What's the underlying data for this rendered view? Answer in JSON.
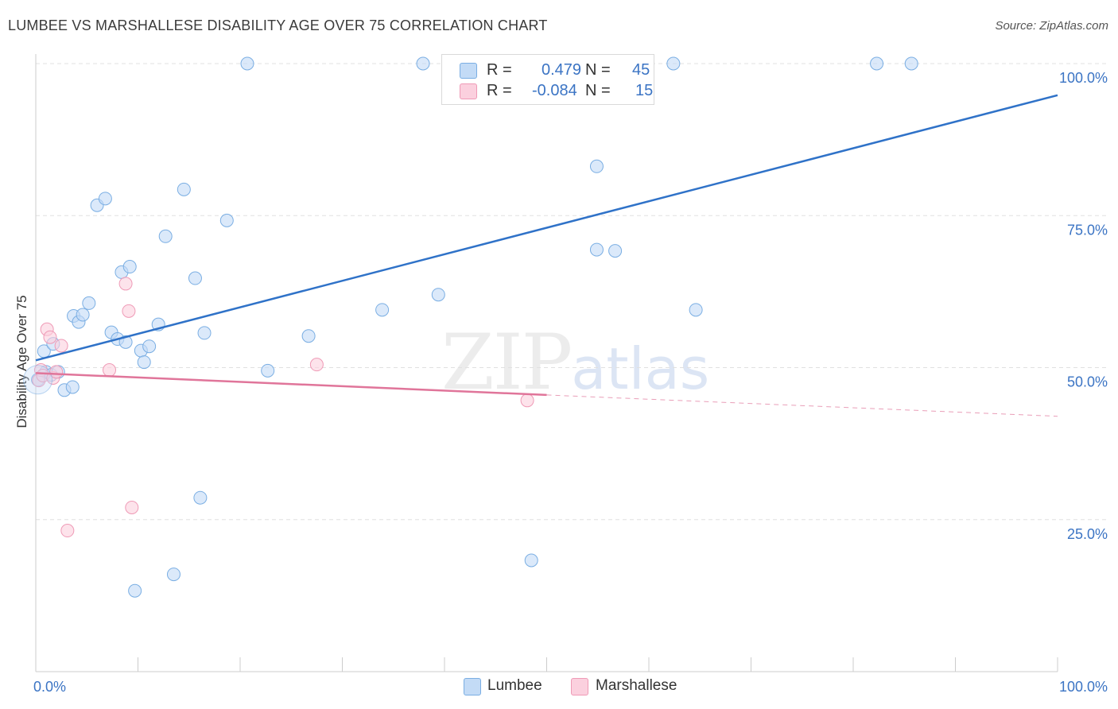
{
  "title": "LUMBEE VS MARSHALLESE DISABILITY AGE OVER 75 CORRELATION CHART",
  "source": "Source: ZipAtlas.com",
  "watermark": {
    "zip": "ZIP",
    "atlas": "atlas"
  },
  "legend": {
    "r_label": "R =",
    "n_label": "N =",
    "lumbee": {
      "r": "0.479",
      "n": "45"
    },
    "marshallese": {
      "r": "-0.084",
      "n": "15"
    }
  },
  "colors": {
    "lumbee_fill": "#c3dbf6",
    "lumbee_stroke": "#7aaee3",
    "lumbee_line": "#2f72c8",
    "marshallese_fill": "#fbd0de",
    "marshallese_stroke": "#ef9ab6",
    "marshallese_line": "#e0759a",
    "axis_label": "#3b74c4",
    "grid": "#e0e0e0"
  },
  "chart_data": {
    "type": "scatter",
    "title": "LUMBEE VS MARSHALLESE DISABILITY AGE OVER 75 CORRELATION CHART",
    "xlabel": "",
    "ylabel": "Disability Age Over 75",
    "xlim": [
      0,
      100
    ],
    "ylim": [
      0,
      105
    ],
    "x_tick_labels": [
      "0.0%",
      "100.0%"
    ],
    "y_ticks": [
      25,
      50,
      75,
      100
    ],
    "y_tick_labels": [
      "25.0%",
      "50.0%",
      "75.0%",
      "100.0%"
    ],
    "series": [
      {
        "name": "Lumbee",
        "points": [
          [
            0.2,
            48.0
          ],
          [
            0.8,
            52.7
          ],
          [
            1.0,
            49.3
          ],
          [
            1.5,
            48.8
          ],
          [
            1.7,
            53.9
          ],
          [
            2.2,
            49.3
          ],
          [
            2.8,
            46.3
          ],
          [
            3.6,
            46.8
          ],
          [
            3.7,
            58.5
          ],
          [
            4.2,
            57.5
          ],
          [
            4.6,
            58.7
          ],
          [
            5.2,
            60.6
          ],
          [
            6.0,
            76.7
          ],
          [
            6.8,
            77.8
          ],
          [
            7.4,
            55.8
          ],
          [
            8.0,
            54.7
          ],
          [
            8.4,
            65.7
          ],
          [
            8.8,
            54.2
          ],
          [
            9.2,
            66.6
          ],
          [
            9.7,
            13.3
          ],
          [
            10.3,
            52.8
          ],
          [
            10.6,
            50.9
          ],
          [
            11.1,
            53.5
          ],
          [
            12.0,
            57.1
          ],
          [
            12.7,
            71.6
          ],
          [
            13.5,
            16.0
          ],
          [
            14.5,
            79.3
          ],
          [
            15.6,
            64.7
          ],
          [
            16.1,
            28.6
          ],
          [
            16.5,
            55.7
          ],
          [
            18.7,
            74.2
          ],
          [
            20.7,
            100.0
          ],
          [
            22.7,
            49.5
          ],
          [
            26.7,
            55.2
          ],
          [
            33.9,
            59.5
          ],
          [
            37.9,
            100.0
          ],
          [
            39.4,
            62.0
          ],
          [
            48.5,
            18.3
          ],
          [
            54.9,
            83.1
          ],
          [
            54.9,
            69.4
          ],
          [
            56.7,
            69.2
          ],
          [
            62.4,
            100.0
          ],
          [
            64.6,
            59.5
          ],
          [
            82.3,
            100.0
          ],
          [
            85.7,
            100.0
          ]
        ],
        "trend": {
          "x": [
            0,
            100
          ],
          "y": [
            51.2,
            94.8
          ]
        }
      },
      {
        "name": "Marshallese",
        "points": [
          [
            0.3,
            47.9
          ],
          [
            0.5,
            49.6
          ],
          [
            0.7,
            48.7
          ],
          [
            1.1,
            56.3
          ],
          [
            1.4,
            55.0
          ],
          [
            1.7,
            48.3
          ],
          [
            2.0,
            49.3
          ],
          [
            2.5,
            53.6
          ],
          [
            3.1,
            23.2
          ],
          [
            7.2,
            49.6
          ],
          [
            8.8,
            63.8
          ],
          [
            9.1,
            59.3
          ],
          [
            9.4,
            27.0
          ],
          [
            27.5,
            50.5
          ],
          [
            48.1,
            44.6
          ]
        ],
        "trend": {
          "x": [
            0,
            50
          ],
          "y": [
            49.1,
            45.5
          ]
        },
        "trend_extension": {
          "x": [
            50,
            100
          ],
          "y": [
            45.5,
            42.0
          ]
        }
      }
    ],
    "legend_labels": [
      "Lumbee",
      "Marshallese"
    ]
  }
}
